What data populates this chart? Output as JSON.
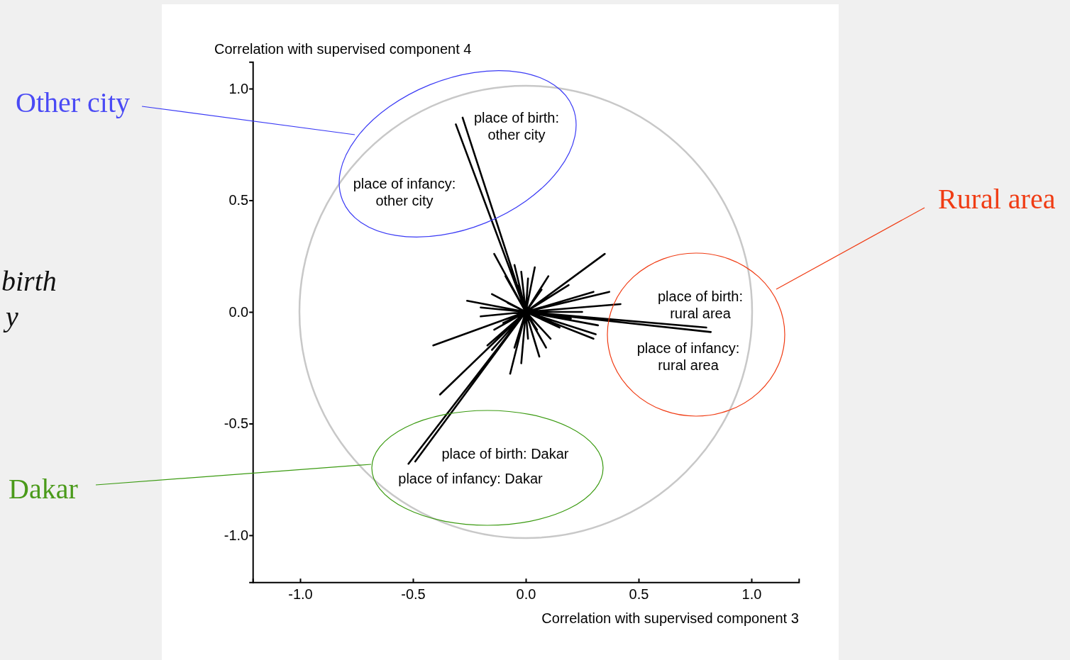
{
  "chart_data": {
    "type": "line",
    "xlabel": "Correlation with supervised component 3",
    "ylabel": "Correlation with supervised component 4",
    "xlim": [
      -1.21,
      1.21
    ],
    "ylim": [
      -1.21,
      1.12
    ],
    "xticks": [
      {
        "value": -1,
        "label": "-1.0"
      },
      {
        "value": -0.5,
        "label": "-0.5"
      },
      {
        "value": 0,
        "label": "0.0"
      },
      {
        "value": 0.5,
        "label": "0.5"
      },
      {
        "value": 1,
        "label": "1.0"
      }
    ],
    "yticks": [
      {
        "value": -1,
        "label": "-1.0"
      },
      {
        "value": -0.5,
        "label": "-0.5"
      },
      {
        "value": 0,
        "label": "0.0"
      },
      {
        "value": 0.5,
        "label": "0.5"
      },
      {
        "value": 1,
        "label": "1.0"
      }
    ],
    "grid": false,
    "marker": "none",
    "line_style": "solid",
    "series": [
      {
        "color": "#000000",
        "x": [
          0,
          -0.28,
          0,
          -0.31,
          0,
          0.8,
          0,
          0.82,
          0,
          -0.52,
          0,
          -0.49,
          0,
          0.35,
          0,
          -0.14,
          0,
          0.04,
          0,
          -0.05,
          0,
          -0.02,
          0,
          0.01,
          0,
          0.1,
          0,
          -0.09,
          0,
          0.19,
          0,
          0.3,
          0,
          0.37,
          0,
          0.42,
          0,
          -0.26,
          0,
          -0.15,
          0,
          -0.2,
          0,
          -0.41,
          0,
          0.32,
          0,
          0.31,
          0,
          0.3,
          0,
          0.11,
          0,
          0.09,
          0,
          0.01,
          0,
          -0.02,
          0,
          -0.05,
          0,
          -0.14,
          0,
          -0.17,
          0,
          -0.38,
          0,
          -0.15,
          0,
          0.05,
          0,
          -0.08,
          0,
          0.12,
          0,
          -0.1,
          0,
          0.2,
          0,
          0.07,
          0,
          -0.03,
          0,
          0.15,
          0,
          0.25,
          0,
          -0.2,
          0,
          0.06,
          0,
          -0.07
        ],
        "values": [
          0,
          0.87,
          0,
          0.84,
          0,
          -0.07,
          0,
          -0.09,
          0,
          -0.68,
          0,
          -0.67,
          0,
          0.26,
          0,
          0.26,
          0,
          0.2,
          0,
          0.21,
          0,
          0.18,
          0,
          0.15,
          0,
          0.16,
          0,
          0.16,
          0,
          0.12,
          0,
          0.09,
          0,
          0.09,
          0,
          0.035,
          0,
          0.05,
          0,
          0.08,
          0,
          -0.02,
          0,
          -0.15,
          0,
          -0.06,
          0,
          -0.1,
          0,
          -0.12,
          0,
          -0.12,
          0,
          -0.16,
          0,
          -0.12,
          0,
          -0.23,
          0,
          -0.16,
          0,
          -0.08,
          0,
          -0.15,
          0,
          -0.37,
          0,
          -0.17,
          0,
          -0.08,
          0,
          0.04,
          0,
          0.03,
          0,
          -0.05,
          0,
          -0.03,
          0,
          0.1,
          0,
          0.12,
          0,
          -0.07,
          0,
          0,
          0,
          0.02,
          0,
          -0.2,
          0,
          -0.28
        ]
      }
    ],
    "annotations": [
      "place of birth:\nother city",
      "place of infancy:\nother city",
      "place of birth:\nrural area",
      "place of infancy:\nrural area",
      "place of birth: Dakar",
      "place of infancy: Dakar",
      "Other city",
      "Rural area",
      "Dakar",
      "birth",
      "y"
    ]
  }
}
